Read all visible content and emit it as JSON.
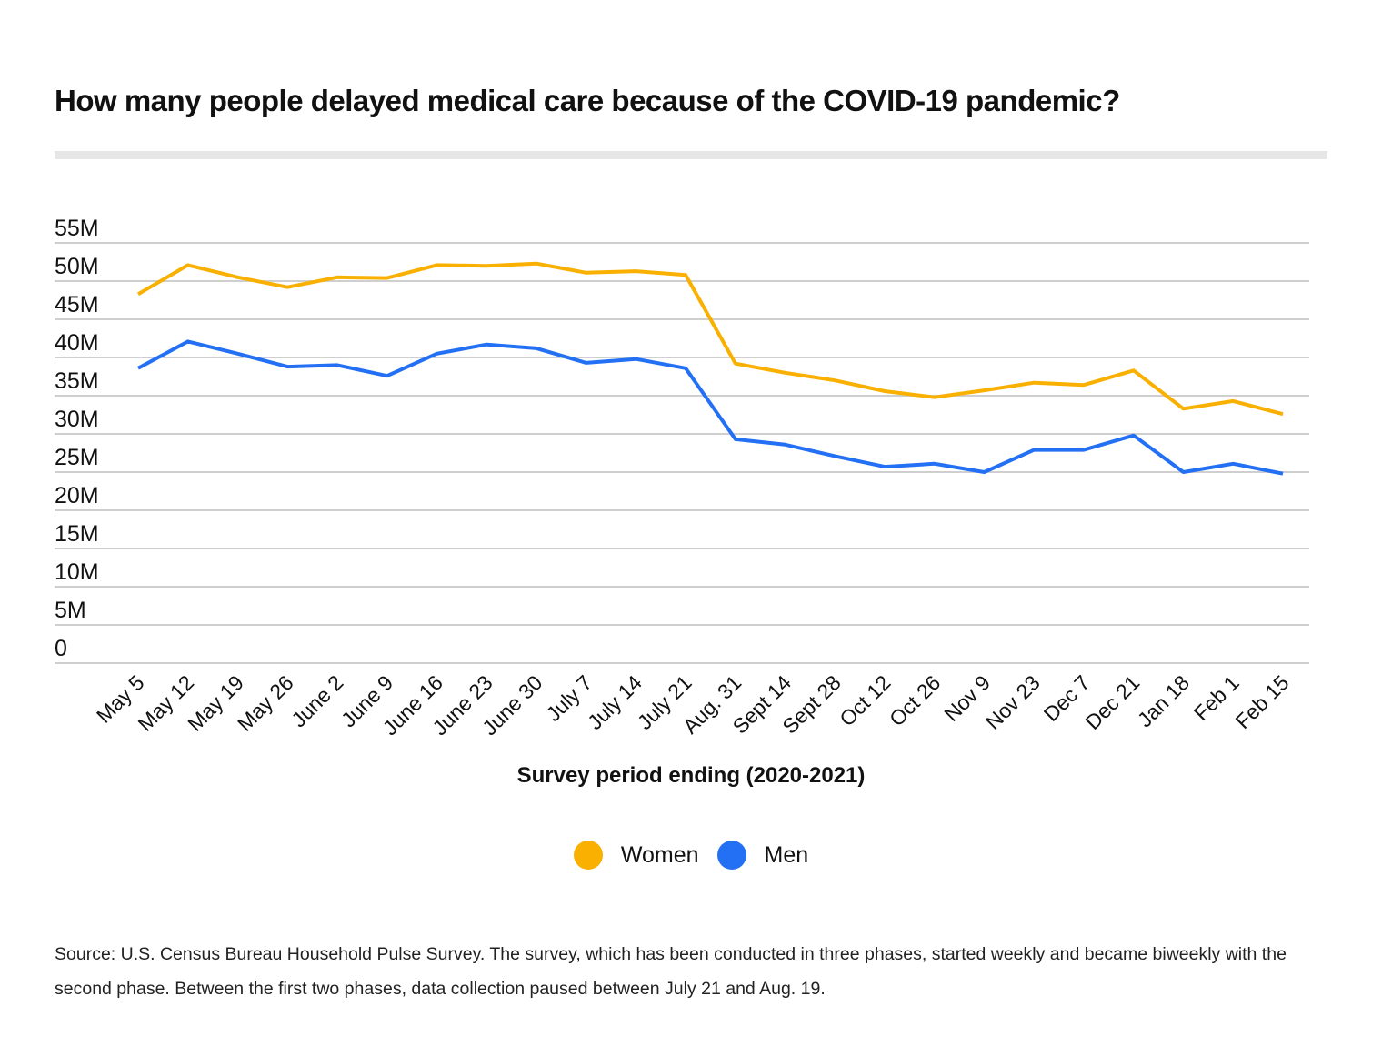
{
  "chart_data": {
    "type": "line",
    "title": "How many people delayed medical care because of the COVID-19 pandemic?",
    "xlabel": "Survey period ending (2020-2021)",
    "ylabel": "",
    "ylim": [
      0,
      55000000
    ],
    "yticks": [
      "0",
      "5M",
      "10M",
      "15M",
      "20M",
      "25M",
      "30M",
      "35M",
      "40M",
      "45M",
      "50M",
      "55M"
    ],
    "grid": true,
    "legend_position": "bottom",
    "categories": [
      "May 5",
      "May 12",
      "May 19",
      "May 26",
      "June 2",
      "June 9",
      "June 16",
      "June 23",
      "June 30",
      "July 7",
      "July 14",
      "July 21",
      "Aug. 31",
      "Sept 14",
      "Sept 28",
      "Oct 12",
      "Oct 26",
      "Nov 9",
      "Nov 23",
      "Dec 7",
      "Dec 21",
      "Jan 18",
      "Feb 1",
      "Feb 15"
    ],
    "series": [
      {
        "name": "Women",
        "color": "#F9B000",
        "values": [
          48.3,
          52.1,
          50.5,
          49.2,
          50.5,
          50.4,
          52.1,
          52.0,
          52.3,
          51.1,
          51.3,
          50.8,
          39.2,
          38.0,
          37.0,
          35.6,
          34.8,
          35.7,
          36.7,
          36.4,
          38.3,
          33.3,
          34.3,
          32.6
        ]
      },
      {
        "name": "Men",
        "color": "#2370F5",
        "values": [
          38.6,
          42.1,
          40.5,
          38.8,
          39.0,
          37.6,
          40.5,
          41.7,
          41.2,
          39.3,
          39.8,
          38.6,
          29.3,
          28.6,
          27.1,
          25.7,
          26.1,
          25.0,
          27.9,
          27.9,
          29.8,
          25.0,
          26.1,
          24.8
        ]
      }
    ],
    "value_unit": "millions"
  },
  "source": "Source: U.S. Census Bureau Household Pulse Survey. The survey, which has been conducted in three phases, started weekly and became biweekly with the second phase. Between the first two phases, data collection paused between July 21 and Aug. 19."
}
